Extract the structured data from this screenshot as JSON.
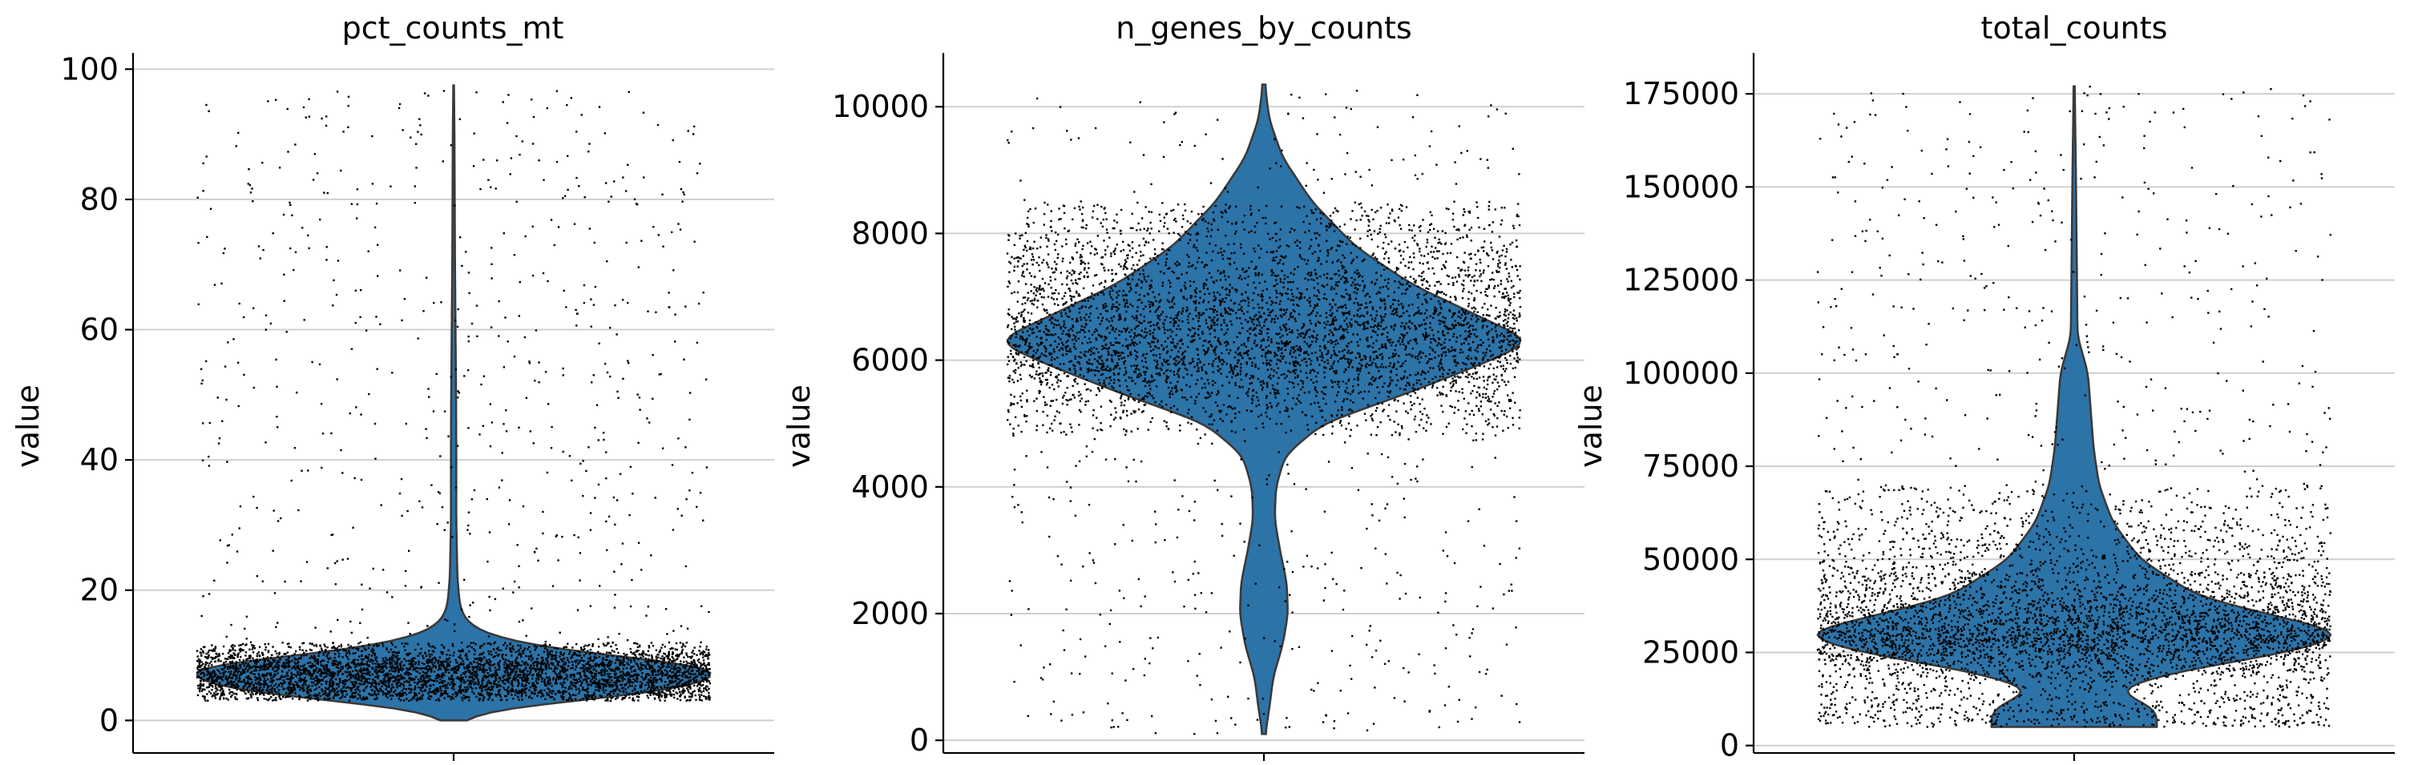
{
  "figure": {
    "background": "#ffffff",
    "violin_color": "#2c73a8",
    "point_color": "#000000"
  },
  "chart_data": [
    {
      "type": "violin",
      "title": "pct_counts_mt",
      "xlabel": "",
      "ylabel": "value",
      "ylim": [
        -5,
        102.5
      ],
      "yticks": [
        0,
        20,
        40,
        60,
        80,
        100
      ],
      "grid": true,
      "legend": "none",
      "distribution": {
        "min": 0.0,
        "max": 97.5,
        "mode": 8,
        "median": 8,
        "y": [
          0.0,
          1.5,
          3.0,
          4.5,
          6.0,
          7.5,
          8.5,
          10.0,
          12.0,
          14.0,
          16.0,
          18.0,
          22.0,
          30.0,
          40.0,
          50.0,
          60.0,
          70.0,
          80.0,
          90.0,
          97.5
        ],
        "density": [
          0.005,
          0.1,
          0.45,
          0.8,
          0.95,
          1.0,
          0.95,
          0.55,
          0.22,
          0.08,
          0.035,
          0.022,
          0.014,
          0.01,
          0.01,
          0.009,
          0.007,
          0.005,
          0.004,
          0.003,
          0.001
        ]
      },
      "points": {
        "approx_count": 5000,
        "body_range": [
          3,
          12
        ],
        "outlier_range": [
          12,
          97
        ]
      }
    },
    {
      "type": "violin",
      "title": "n_genes_by_counts",
      "xlabel": "",
      "ylabel": "value",
      "ylim": [
        -200,
        10850
      ],
      "yticks": [
        0,
        2000,
        4000,
        6000,
        8000,
        10000
      ],
      "grid": true,
      "legend": "none",
      "distribution": {
        "min": 100,
        "max": 10350,
        "mode": 6300,
        "median": 6300,
        "y": [
          100,
          500,
          1000,
          1500,
          2000,
          2500,
          3000,
          3500,
          4000,
          4500,
          5000,
          5500,
          6000,
          6300,
          6700,
          7200,
          7800,
          8500,
          9200,
          9800,
          10350
        ],
        "density": [
          0.005,
          0.02,
          0.035,
          0.07,
          0.09,
          0.085,
          0.06,
          0.04,
          0.045,
          0.08,
          0.22,
          0.55,
          0.85,
          1.0,
          0.8,
          0.55,
          0.34,
          0.18,
          0.07,
          0.02,
          0.004
        ]
      },
      "points": {
        "approx_count": 5000,
        "body_range": [
          4800,
          8500
        ],
        "outlier_range": [
          100,
          10300
        ]
      }
    },
    {
      "type": "violin",
      "title": "total_counts",
      "xlabel": "",
      "ylabel": "value",
      "ylim": [
        -2000,
        186000
      ],
      "yticks": [
        0,
        25000,
        50000,
        75000,
        100000,
        125000,
        150000,
        175000
      ],
      "grid": true,
      "legend": "none",
      "distribution": {
        "min": 5000,
        "max": 177000,
        "mode": 30000,
        "median": 32000,
        "y": [
          5000,
          10000,
          15000,
          20000,
          25000,
          30000,
          35000,
          40000,
          50000,
          60000,
          70000,
          80000,
          90000,
          100000,
          110000,
          125000,
          140000,
          155000,
          165000,
          177000
        ],
        "density": [
          0.3,
          0.3,
          0.14,
          0.38,
          0.78,
          1.0,
          0.72,
          0.45,
          0.24,
          0.14,
          0.09,
          0.07,
          0.06,
          0.05,
          0.012,
          0.01,
          0.008,
          0.006,
          0.004,
          0.002
        ]
      },
      "points": {
        "approx_count": 5000,
        "body_range": [
          5000,
          70000
        ],
        "outlier_range": [
          5000,
          177000
        ]
      }
    }
  ]
}
